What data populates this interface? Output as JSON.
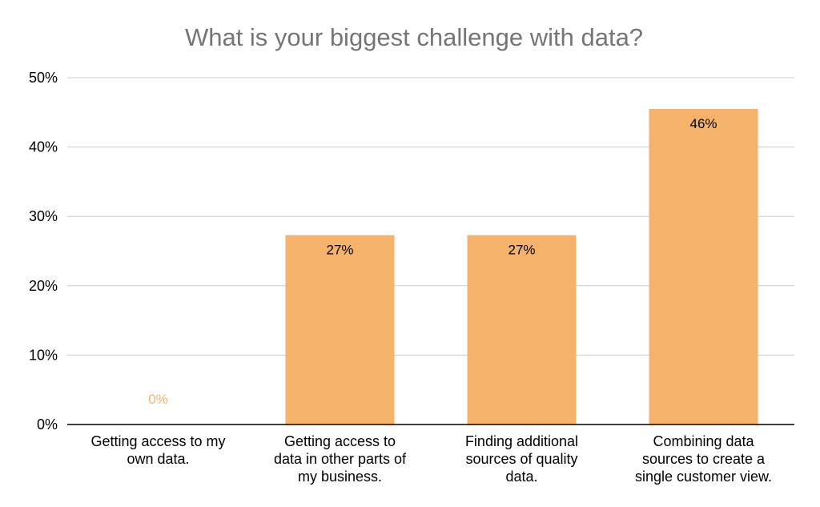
{
  "chart_data": {
    "type": "bar",
    "title": "What is your biggest challenge with data?",
    "xlabel": "",
    "ylabel": "",
    "categories": [
      [
        "Getting access to my",
        "own data."
      ],
      [
        "Getting access to",
        "data in other parts of",
        "my business."
      ],
      [
        "Finding additional",
        "sources of quality",
        "data."
      ],
      [
        "Combining data",
        "sources to create a",
        "single customer view."
      ]
    ],
    "values": [
      0,
      27.3,
      27.3,
      45.5
    ],
    "data_labels": [
      "0%",
      "27%",
      "27%",
      "46%"
    ],
    "ylim": [
      0,
      50
    ],
    "yticks": [
      0,
      10,
      20,
      30,
      40,
      50
    ],
    "ytick_labels": [
      "0%",
      "10%",
      "20%",
      "30%",
      "40%",
      "50%"
    ],
    "grid": true,
    "legend": "none",
    "colors": {
      "bar": "#f4b26b",
      "grid": "#cccccc",
      "axis": "#000000",
      "title": "#757575",
      "zero_label": "#f4b26b"
    }
  }
}
